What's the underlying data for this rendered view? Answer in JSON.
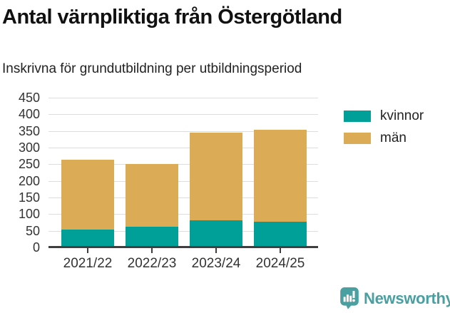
{
  "chart_data": {
    "type": "bar",
    "stacked": true,
    "title": "Antal värnpliktiga från Östergötland",
    "subtitle": "Inskrivna för grundutbildning per utbildningsperiod",
    "categories": [
      "2021/22",
      "2022/23",
      "2023/24",
      "2024/25"
    ],
    "series": [
      {
        "name": "kvinnor",
        "color": "#00a099",
        "values": [
          54,
          62,
          81,
          77
        ]
      },
      {
        "name": "män",
        "color": "#dcab55",
        "values": [
          209,
          188,
          264,
          277
        ]
      }
    ],
    "totals": [
      263,
      250,
      345,
      354
    ],
    "ylim": [
      0,
      450
    ],
    "ytick_step": 50,
    "yticks": [
      0,
      50,
      100,
      150,
      200,
      250,
      300,
      350,
      400,
      450
    ],
    "grid": true,
    "legend_position": "right",
    "colors": {
      "grid": "#dddddd",
      "axis": "#3f3f3f",
      "axis_text": "#333333"
    }
  },
  "footer": {
    "brand": "Newsworthy",
    "brand_color": "#4a9fa0"
  }
}
